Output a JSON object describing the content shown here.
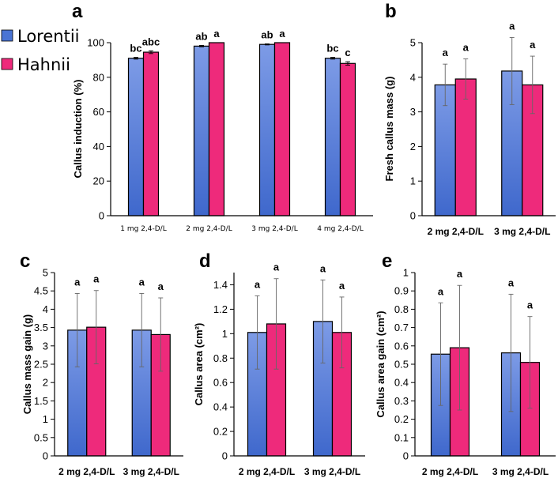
{
  "colors": {
    "lorentii_top": "#7d9be6",
    "lorentii_bottom": "#3f68cc",
    "hahnii": "#ee2a7b",
    "axis": "#000000",
    "error_bar": "#666666"
  },
  "legend": [
    {
      "name": "Lorentii",
      "color": "#4a74d4"
    },
    {
      "name": "Hahnii",
      "color": "#ee2a7b"
    }
  ],
  "chart_data": [
    {
      "panel": "a",
      "type": "bar",
      "ylabel": "Callus induction (%)",
      "ylim": [
        0,
        100
      ],
      "yticks": [
        "0",
        "20",
        "40",
        "60",
        "80",
        "100"
      ],
      "categories": [
        "1 mg 2,4-D/L",
        "2 mg 2,4-D/L",
        "3 mg 2,4-D/L",
        "4 mg 2,4-D/L"
      ],
      "series": [
        {
          "name": "Lorentii",
          "values": [
            91,
            98,
            99,
            91
          ],
          "errors": [
            0.5,
            0.4,
            0.3,
            0.5
          ],
          "labels": [
            "bc",
            "ab",
            "ab",
            "bc"
          ]
        },
        {
          "name": "Hahnii",
          "values": [
            94.5,
            100,
            100,
            88
          ],
          "errors": [
            0.8,
            0,
            0,
            1.0
          ],
          "labels": [
            "abc",
            "a",
            "a",
            "c"
          ]
        }
      ]
    },
    {
      "panel": "b",
      "type": "bar",
      "ylabel": "Fresh callus mass (g)",
      "ylim": [
        0,
        5
      ],
      "yticks": [
        "0",
        "1",
        "2",
        "3",
        "4",
        "5"
      ],
      "categories": [
        "2 mg 2,4-D/L",
        "3 mg 2,4-D/L"
      ],
      "series": [
        {
          "name": "Lorentii",
          "values": [
            3.78,
            4.18
          ],
          "errors": [
            0.6,
            0.97
          ],
          "labels": [
            "a",
            "a"
          ]
        },
        {
          "name": "Hahnii",
          "values": [
            3.95,
            3.78
          ],
          "errors": [
            0.58,
            0.83
          ],
          "labels": [
            "a",
            "a"
          ]
        }
      ]
    },
    {
      "panel": "c",
      "type": "bar",
      "ylabel": "Callus mass gain (g)",
      "ylim": [
        0,
        5
      ],
      "yticks": [
        "0",
        "0.5",
        "1",
        "1.5",
        "2",
        "2.5",
        "3",
        "3.5",
        "4",
        "4.5",
        "5"
      ],
      "categories": [
        "2 mg 2,4-D/L",
        "3 mg 2,4-D/L"
      ],
      "series": [
        {
          "name": "Lorentii",
          "values": [
            3.43,
            3.43
          ],
          "errors": [
            1.0,
            1.0
          ],
          "labels": [
            "a",
            "a"
          ]
        },
        {
          "name": "Hahnii",
          "values": [
            3.51,
            3.31
          ],
          "errors": [
            1.0,
            1.0
          ],
          "labels": [
            "a",
            "a"
          ]
        }
      ]
    },
    {
      "panel": "d",
      "type": "bar",
      "ylabel": "Callus area (cm²)",
      "ylim": [
        0,
        1.5
      ],
      "yticks": [
        "0",
        "0.2",
        "0.4",
        "0.6",
        "0.8",
        "1",
        "1.2",
        "1.4"
      ],
      "categories": [
        "2 mg 2,4-D/L",
        "3 mg 2,4-D/L"
      ],
      "series": [
        {
          "name": "Lorentii",
          "values": [
            1.01,
            1.1
          ],
          "errors": [
            0.3,
            0.34
          ],
          "labels": [
            "a",
            "a"
          ]
        },
        {
          "name": "Hahnii",
          "values": [
            1.08,
            1.01
          ],
          "errors": [
            0.37,
            0.29
          ],
          "labels": [
            "a",
            "a"
          ]
        }
      ]
    },
    {
      "panel": "e",
      "type": "bar",
      "ylabel": "Callus area gain (cm²)",
      "ylim": [
        0,
        1
      ],
      "yticks": [
        "0",
        "0.1",
        "0.2",
        "0.3",
        "0.4",
        "0.5",
        "0.6",
        "0.7",
        "0.8",
        "0.9",
        "1"
      ],
      "categories": [
        "2 mg 2,4-D/L",
        "3 mg 2,4-D/L"
      ],
      "series": [
        {
          "name": "Lorentii",
          "values": [
            0.555,
            0.562
          ],
          "errors": [
            0.28,
            0.32
          ],
          "labels": [
            "a",
            "a"
          ]
        },
        {
          "name": "Hahnii",
          "values": [
            0.59,
            0.51
          ],
          "errors": [
            0.34,
            0.25
          ],
          "labels": [
            "a",
            "a"
          ]
        }
      ]
    }
  ]
}
